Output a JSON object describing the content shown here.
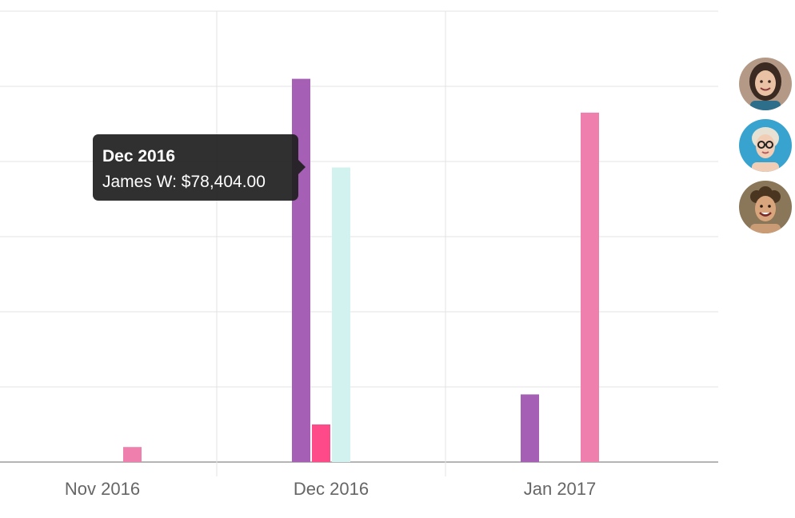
{
  "chart_data": {
    "type": "bar",
    "categories": [
      "Nov 2016",
      "Dec 2016",
      "Jan 2017"
    ],
    "ylim": [
      0,
      120000
    ],
    "grid": true,
    "legend_placement": "right",
    "series": [
      {
        "color": "#a55fb5",
        "values": [
          0,
          102000,
          18000
        ]
      },
      {
        "color": "#ff4a8a",
        "values": [
          0,
          10000,
          0
        ]
      },
      {
        "color": "#d2f2f0",
        "values": [
          0,
          78404,
          0
        ]
      },
      {
        "color": "#ef80ad",
        "values": [
          4000,
          0,
          93000
        ]
      }
    ]
  },
  "tooltip": {
    "title": "Dec 2016",
    "body": "James W: $78,404.00"
  },
  "legend": {
    "avatars": [
      {
        "icon": "avatar-woman-dark-hair",
        "bg": "#b49a86"
      },
      {
        "icon": "avatar-woman-blonde-glasses",
        "bg": "#39a3cf"
      },
      {
        "icon": "avatar-man-curly-hair",
        "bg": "#8a7658"
      }
    ]
  }
}
